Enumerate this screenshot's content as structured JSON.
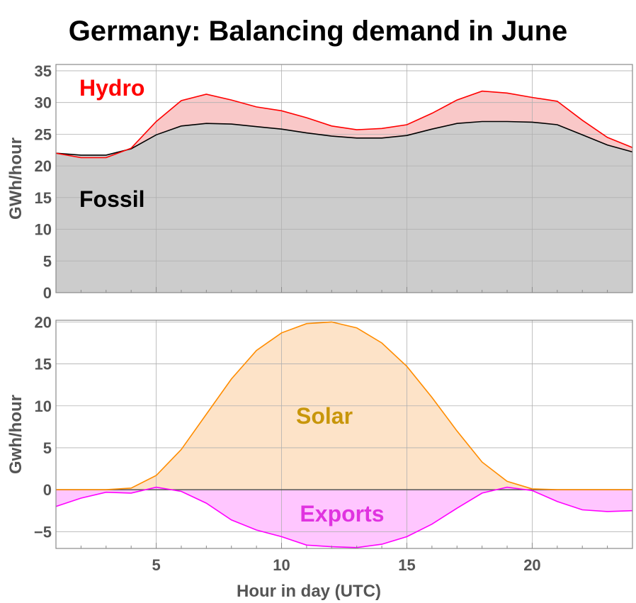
{
  "title": "Germany:  Balancing demand in June",
  "chart_data": [
    {
      "type": "area",
      "ylabel": "GWh/hour",
      "xlabel": "",
      "xlim": [
        1,
        24
      ],
      "ylim": [
        0,
        36
      ],
      "xticks": [
        5,
        10,
        15,
        20
      ],
      "yticks": [
        0,
        5,
        10,
        15,
        20,
        25,
        30,
        35
      ],
      "grid": true,
      "x": [
        1,
        2,
        3,
        4,
        5,
        6,
        7,
        8,
        9,
        10,
        11,
        12,
        13,
        14,
        15,
        16,
        17,
        18,
        19,
        20,
        21,
        22,
        23,
        24
      ],
      "series": [
        {
          "name": "Fossil",
          "color": "#000000",
          "fill": "#cccccc",
          "values": [
            22.0,
            21.7,
            21.7,
            22.7,
            24.9,
            26.3,
            26.7,
            26.6,
            26.2,
            25.8,
            25.2,
            24.7,
            24.4,
            24.4,
            24.8,
            25.8,
            26.7,
            27.0,
            27.0,
            26.9,
            26.5,
            24.9,
            23.3,
            22.2
          ]
        },
        {
          "name": "Hydro",
          "color": "#ff0000",
          "fill": "#f9c8c8",
          "values": [
            22.0,
            21.3,
            21.3,
            22.8,
            27.0,
            30.3,
            31.3,
            30.4,
            29.3,
            28.7,
            27.6,
            26.3,
            25.7,
            25.9,
            26.5,
            28.3,
            30.4,
            31.8,
            31.5,
            30.8,
            30.2,
            27.2,
            24.5,
            22.9
          ]
        }
      ]
    },
    {
      "type": "area",
      "ylabel": "Gwh/hour",
      "xlabel": "Hour in day (UTC)",
      "xlim": [
        1,
        24
      ],
      "ylim": [
        -7,
        20.2
      ],
      "xticks": [
        5,
        10,
        15,
        20
      ],
      "yticks": [
        -5,
        0,
        5,
        10,
        15,
        20
      ],
      "grid": true,
      "x": [
        1,
        2,
        3,
        4,
        5,
        6,
        7,
        8,
        9,
        10,
        11,
        12,
        13,
        14,
        15,
        16,
        17,
        18,
        19,
        20,
        21,
        22,
        23,
        24
      ],
      "series": [
        {
          "name": "Solar",
          "color": "#ff8c00",
          "fill": "#fde3c8",
          "values": [
            0,
            0,
            0,
            0.2,
            1.7,
            4.8,
            9.0,
            13.2,
            16.6,
            18.7,
            19.8,
            20.0,
            19.3,
            17.5,
            14.7,
            11.0,
            7.0,
            3.3,
            1.0,
            0.1,
            0,
            0,
            0,
            0
          ]
        },
        {
          "name": "Exports",
          "color": "#ff00ff",
          "fill": "#ffc6ff",
          "values": [
            -2.0,
            -1.0,
            -0.3,
            -0.4,
            0.3,
            -0.2,
            -1.6,
            -3.6,
            -4.8,
            -5.6,
            -6.6,
            -6.8,
            -6.9,
            -6.5,
            -5.6,
            -4.1,
            -2.2,
            -0.4,
            0.3,
            -0.1,
            -1.4,
            -2.4,
            -2.6,
            -2.5
          ]
        }
      ]
    }
  ]
}
